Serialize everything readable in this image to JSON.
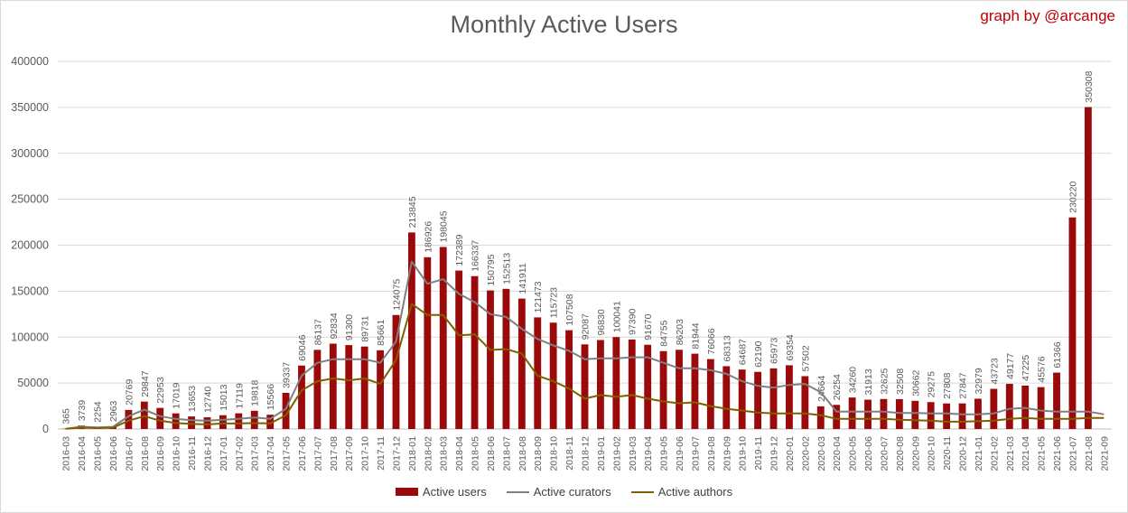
{
  "title": "Monthly Active Users",
  "credit": "graph by @arcange",
  "colors": {
    "bar": "#9b0a0a",
    "curators": "#7f7f7f",
    "authors": "#7f6000",
    "grid": "#d9d9d9",
    "text": "#595959"
  },
  "chart_data": {
    "type": "bar",
    "title": "Monthly Active Users",
    "xlabel": "",
    "ylabel": "",
    "ylim": [
      0,
      400000
    ],
    "yticks": [
      0,
      50000,
      100000,
      150000,
      200000,
      250000,
      300000,
      350000,
      400000
    ],
    "grid": true,
    "legend_position": "bottom",
    "categories": [
      "2016-03",
      "2016-04",
      "2016-05",
      "2016-06",
      "2016-07",
      "2016-08",
      "2016-09",
      "2016-10",
      "2016-11",
      "2016-12",
      "2017-01",
      "2017-02",
      "2017-03",
      "2017-04",
      "2017-05",
      "2017-06",
      "2017-07",
      "2017-08",
      "2017-09",
      "2017-10",
      "2017-11",
      "2017-12",
      "2018-01",
      "2018-02",
      "2018-03",
      "2018-04",
      "2018-05",
      "2018-06",
      "2018-07",
      "2018-08",
      "2018-09",
      "2018-10",
      "2018-11",
      "2018-12",
      "2019-01",
      "2019-02",
      "2019-03",
      "2019-04",
      "2019-05",
      "2019-06",
      "2019-07",
      "2019-08",
      "2019-09",
      "2019-10",
      "2019-11",
      "2019-12",
      "2020-01",
      "2020-02",
      "2020-03",
      "2020-04",
      "2020-05",
      "2020-06",
      "2020-07",
      "2020-08",
      "2020-09",
      "2020-10",
      "2020-11",
      "2020-12",
      "2021-01",
      "2021-02",
      "2021-03",
      "2021-04",
      "2021-05",
      "2021-06",
      "2021-07",
      "2021-08",
      "2021-09"
    ],
    "series": [
      {
        "name": "Active users",
        "type": "bar",
        "values": [
          365,
          3739,
          2254,
          2963,
          20769,
          29847,
          22953,
          17019,
          13653,
          12740,
          15013,
          17119,
          19818,
          15566,
          39337,
          69046,
          86137,
          92834,
          91300,
          89731,
          85661,
          124075,
          213845,
          186926,
          198045,
          172389,
          166337,
          150795,
          152513,
          141911,
          121473,
          115723,
          107508,
          92087,
          96830,
          100041,
          97390,
          91670,
          84755,
          86203,
          81944,
          76066,
          68313,
          64687,
          62190,
          65973,
          69354,
          57502,
          24664,
          26254,
          34260,
          31913,
          32625,
          32508,
          30662,
          29275,
          27808,
          27847,
          32979,
          43723,
          49177,
          47225,
          45576,
          61366,
          230220,
          350308,
          null
        ]
      },
      {
        "name": "Active curators",
        "type": "line",
        "values": [
          300,
          2500,
          1800,
          2400,
          14000,
          21000,
          14000,
          11000,
          9500,
          9000,
          10000,
          11000,
          12500,
          11000,
          22000,
          58000,
          72000,
          76000,
          76000,
          76000,
          72000,
          95000,
          182000,
          158000,
          163000,
          147000,
          138000,
          125000,
          122000,
          109000,
          98000,
          91000,
          85000,
          76000,
          77000,
          77000,
          78000,
          78000,
          72000,
          66000,
          66000,
          64000,
          60000,
          52000,
          47000,
          45000,
          48000,
          49000,
          40000,
          19000,
          19000,
          19000,
          19000,
          17500,
          17500,
          17000,
          17000,
          16000,
          16000,
          17000,
          22000,
          23000,
          20000,
          19000,
          19000,
          19000,
          16000
        ]
      },
      {
        "name": "Active authors",
        "type": "line",
        "values": [
          200,
          1500,
          1000,
          1500,
          9000,
          14000,
          9000,
          6500,
          5500,
          5000,
          6000,
          6000,
          6500,
          6000,
          15000,
          42000,
          52000,
          55000,
          53000,
          55000,
          49000,
          75000,
          136000,
          124000,
          124000,
          102000,
          103000,
          86000,
          87000,
          82000,
          58000,
          52000,
          44000,
          33000,
          37000,
          35000,
          37000,
          33000,
          30000,
          28000,
          29000,
          25000,
          22000,
          20000,
          18000,
          17000,
          17000,
          17000,
          15000,
          11000,
          11000,
          11000,
          11000,
          10000,
          9500,
          9000,
          8000,
          8000,
          8500,
          9000,
          11000,
          12000,
          11000,
          11000,
          11000,
          12000,
          12000
        ]
      }
    ]
  }
}
